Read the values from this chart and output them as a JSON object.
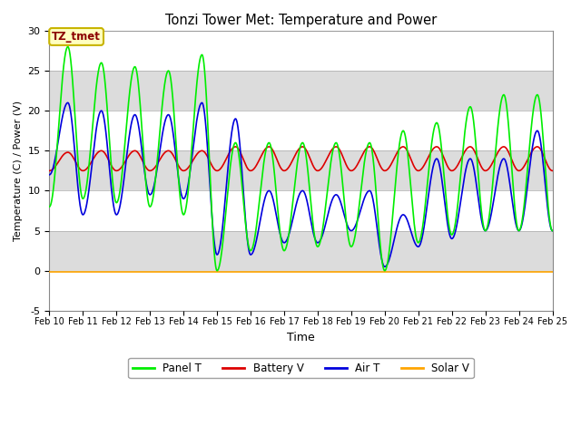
{
  "title": "Tonzi Tower Met: Temperature and Power",
  "xlabel": "Time",
  "ylabel": "Temperature (C) / Power (V)",
  "ylim": [
    -5,
    30
  ],
  "yticks": [
    -5,
    0,
    5,
    10,
    15,
    20,
    25,
    30
  ],
  "xlim": [
    0,
    15
  ],
  "xtick_labels": [
    "Feb 10",
    "Feb 11",
    "Feb 12",
    "Feb 13",
    "Feb 14",
    "Feb 15",
    "Feb 16",
    "Feb 17",
    "Feb 18",
    "Feb 19",
    "Feb 20",
    "Feb 21",
    "Feb 22",
    "Feb 23",
    "Feb 24",
    "Feb 25"
  ],
  "xtick_positions": [
    0,
    1,
    2,
    3,
    4,
    5,
    6,
    7,
    8,
    9,
    10,
    11,
    12,
    13,
    14,
    15
  ],
  "colors": {
    "panel_t": "#00EE00",
    "battery_v": "#DD0000",
    "air_t": "#0000DD",
    "solar_v": "#FFA500"
  },
  "outer_bg": "#C8C8C8",
  "band_colors": [
    "#FFFFFF",
    "#DCDCDC"
  ],
  "annotation_box": {
    "text": "TZ_tmet",
    "text_color": "#8B0000",
    "box_facecolor": "#FFFFC0",
    "box_edgecolor": "#C8B400"
  },
  "legend_entries": [
    "Panel T",
    "Battery V",
    "Air T",
    "Solar V"
  ],
  "linewidth": 1.2
}
